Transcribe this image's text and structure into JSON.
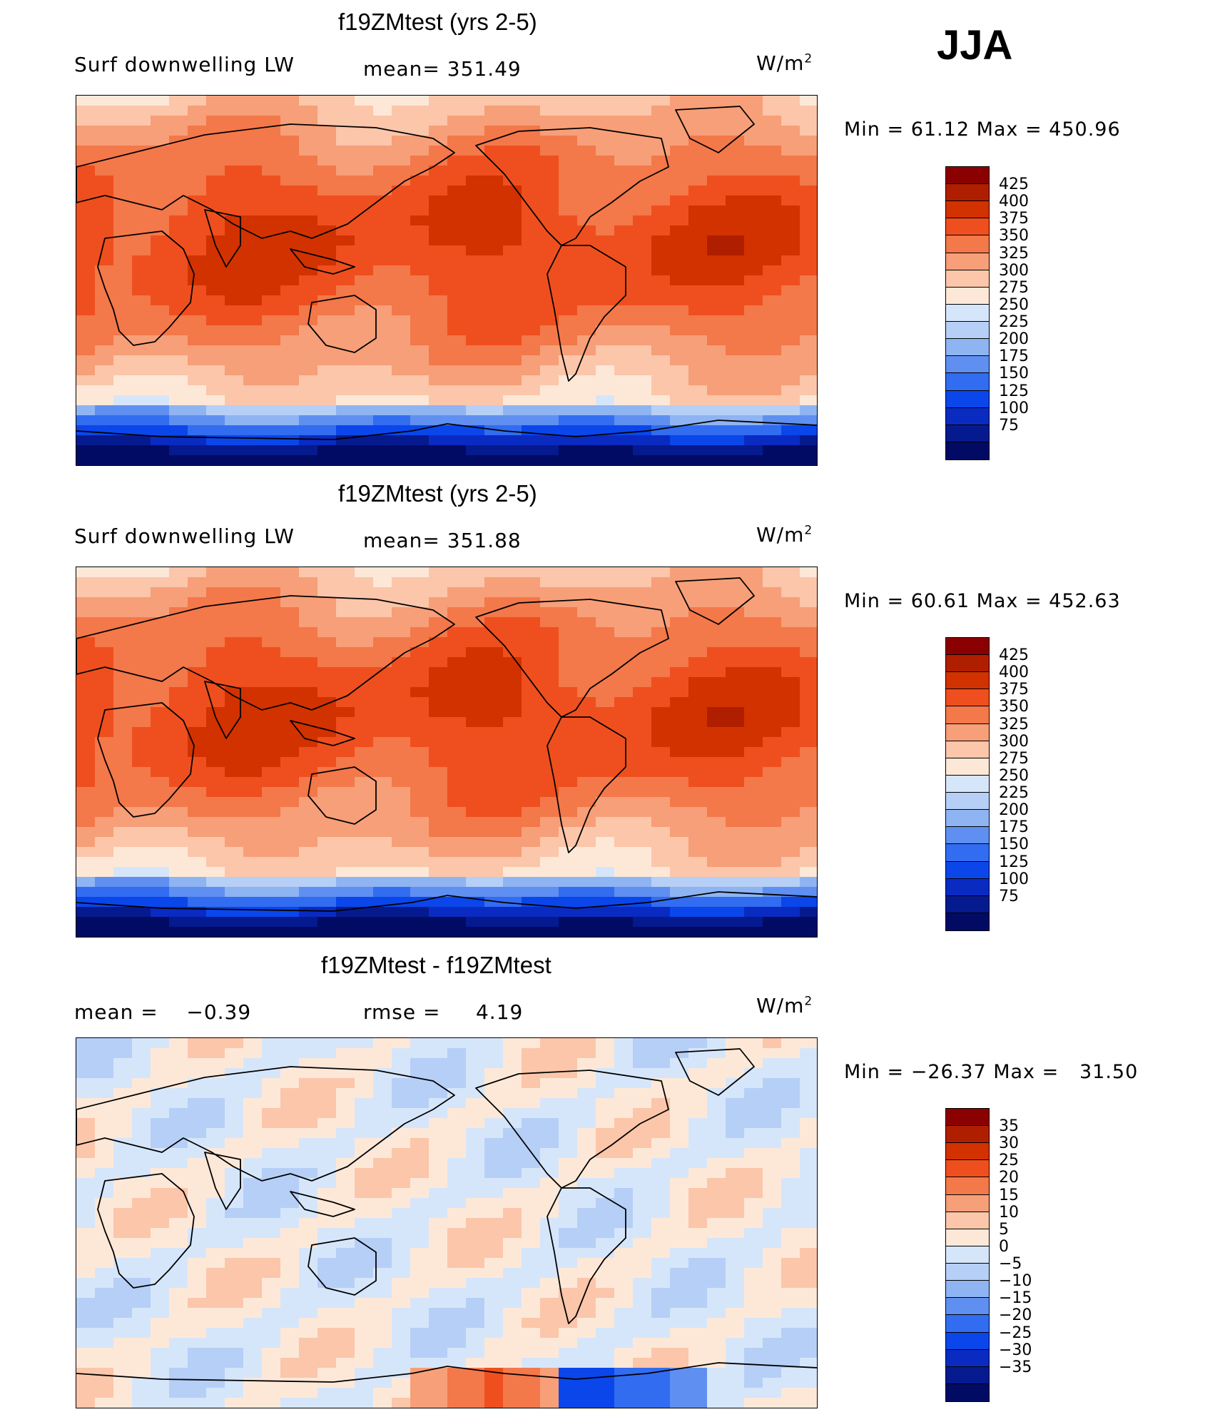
{
  "season": "JJA",
  "panels": [
    {
      "id": "top",
      "title": "f19ZMtest (yrs 2-5)",
      "left_label": "Surf downwelling LW",
      "center_label": "mean= 351.49",
      "units_prefix": "W/m",
      "units_sup": "2",
      "minmax": "Min =   61.12 Max = 450.96",
      "field": "absolute",
      "colorbar": {
        "colors": [
          "#8b0000",
          "#b01e00",
          "#d23200",
          "#ef4f1e",
          "#f3784a",
          "#f79f78",
          "#fbc6aa",
          "#fde8d8",
          "#d6e6fa",
          "#b6cff6",
          "#8fb4f2",
          "#5f8ff0",
          "#326cf0",
          "#0b46ea",
          "#0a2bc2",
          "#061a8f",
          "#020b63"
        ],
        "tick_labels": [
          "425",
          "400",
          "375",
          "350",
          "325",
          "300",
          "275",
          "250",
          "225",
          "200",
          "175",
          "150",
          "125",
          "100",
          "75"
        ]
      }
    },
    {
      "id": "middle",
      "title": "f19ZMtest (yrs 2-5)",
      "left_label": "Surf downwelling LW",
      "center_label": "mean= 351.88",
      "units_prefix": "W/m",
      "units_sup": "2",
      "minmax": "Min =   60.61 Max = 452.63",
      "field": "absolute",
      "colorbar": {
        "colors": [
          "#8b0000",
          "#b01e00",
          "#d23200",
          "#ef4f1e",
          "#f3784a",
          "#f79f78",
          "#fbc6aa",
          "#fde8d8",
          "#d6e6fa",
          "#b6cff6",
          "#8fb4f2",
          "#5f8ff0",
          "#326cf0",
          "#0b46ea",
          "#0a2bc2",
          "#061a8f",
          "#020b63"
        ],
        "tick_labels": [
          "425",
          "400",
          "375",
          "350",
          "325",
          "300",
          "275",
          "250",
          "225",
          "200",
          "175",
          "150",
          "125",
          "100",
          "75"
        ]
      }
    },
    {
      "id": "bottom",
      "title": "f19ZMtest - f19ZMtest",
      "left_label": "mean =    −0.39",
      "center_label": "rmse =     4.19",
      "units_prefix": "W/m",
      "units_sup": "2",
      "minmax": "Min = −26.37 Max =   31.50",
      "field": "difference",
      "colorbar": {
        "colors": [
          "#8b0000",
          "#b01e00",
          "#d23200",
          "#ef4f1e",
          "#f3784a",
          "#f79f78",
          "#fbc6aa",
          "#fde8d8",
          "#d6e6fa",
          "#b6cff6",
          "#8fb4f2",
          "#5f8ff0",
          "#326cf0",
          "#0b46ea",
          "#0a2bc2",
          "#061a8f",
          "#020b63"
        ],
        "tick_labels": [
          "35",
          "30",
          "25",
          "20",
          "15",
          "10",
          "5",
          "0",
          "−5",
          "−10",
          "−15",
          "−20",
          "−25",
          "−30",
          "−35"
        ]
      }
    }
  ]
}
